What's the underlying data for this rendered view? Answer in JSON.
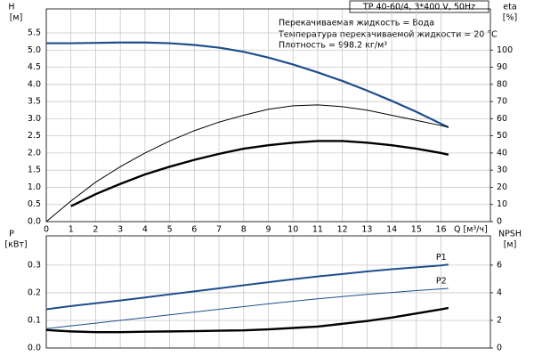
{
  "header": {
    "title": "TP 40-60/4, 3*400 V, 50Hz",
    "notes": [
      "Перекачиваемая жидкость = Вода",
      "Температура перекачиваемой жидкости = 20 °C",
      "Плотность = 998.2 кг/м³"
    ]
  },
  "chart_data": [
    {
      "type": "line",
      "ylabel": "H",
      "yunit": "[м]",
      "y2label": "eta",
      "y2unit": "[%]",
      "xlabel": "Q [м³/ч]",
      "x": [
        0,
        1,
        2,
        3,
        4,
        5,
        6,
        7,
        8,
        9,
        10,
        11,
        12,
        13,
        14,
        15,
        16,
        16.3
      ],
      "xlim": [
        0,
        18
      ],
      "xticks": [
        0,
        1,
        2,
        3,
        4,
        5,
        6,
        7,
        8,
        9,
        10,
        11,
        12,
        13,
        14,
        15,
        16
      ],
      "xtick_labels": true,
      "ylim": [
        0,
        6.2
      ],
      "yticks": [
        {
          "value": 0,
          "label": "0.0"
        },
        0.5,
        {
          "value": 1,
          "label": "1.0"
        },
        1.5,
        {
          "value": 2,
          "label": "2.0"
        },
        2.5,
        {
          "value": 3,
          "label": "3.0"
        },
        3.5,
        {
          "value": 4,
          "label": "4.0"
        },
        4.5,
        {
          "value": 5,
          "label": "5.0"
        },
        5.5
      ],
      "y2lim": [
        0,
        124
      ],
      "y2ticks": [
        0,
        10,
        20,
        30,
        40,
        50,
        60,
        70,
        80,
        90,
        100
      ],
      "grid": true,
      "series": [
        {
          "color": "#1f4e8c",
          "line_width": 2.2,
          "values": [
            5.2,
            5.2,
            5.21,
            5.22,
            5.22,
            5.2,
            5.15,
            5.07,
            4.95,
            4.78,
            4.58,
            4.35,
            4.1,
            3.82,
            3.52,
            3.2,
            2.85,
            2.75
          ]
        },
        {
          "color": "#000000",
          "line_width": 1,
          "axis": "y2",
          "values": [
            0,
            12,
            23,
            32,
            40,
            47,
            53,
            58,
            62,
            65.5,
            67.5,
            68,
            67,
            65,
            62,
            59,
            56,
            55
          ]
        },
        {
          "color": "#000000",
          "line_width": 2.4,
          "axis": "y2",
          "values": [
            null,
            9,
            16,
            22,
            27.5,
            32,
            36,
            39.5,
            42.5,
            44.5,
            46,
            47,
            47,
            46,
            44.5,
            42.5,
            40,
            39
          ]
        }
      ]
    },
    {
      "type": "line",
      "ylabel": "P",
      "yunit": "[кВт]",
      "y2label": "NPSH",
      "y2unit": "[м]",
      "x": [
        0,
        1,
        2,
        3,
        4,
        5,
        6,
        7,
        8,
        9,
        10,
        11,
        12,
        13,
        14,
        15,
        16,
        16.3
      ],
      "xlim": [
        0,
        18
      ],
      "xticks": [
        0,
        1,
        2,
        3,
        4,
        5,
        6,
        7,
        8,
        9,
        10,
        11,
        12,
        13,
        14,
        15,
        16
      ],
      "xtick_labels": false,
      "ylim": [
        0,
        0.406
      ],
      "yticks": [
        {
          "value": 0,
          "label": "0.0"
        },
        0.1,
        0.2,
        0.3
      ],
      "y2lim": [
        0,
        8.12
      ],
      "y2ticks": [
        0,
        2,
        4,
        6
      ],
      "grid": true,
      "series": [
        {
          "name": "P1",
          "color": "#1f4e8c",
          "line_width": 2,
          "values": [
            0.14,
            0.152,
            0.162,
            0.172,
            0.183,
            0.194,
            0.205,
            0.216,
            0.227,
            0.238,
            0.249,
            0.259,
            0.268,
            0.277,
            0.285,
            0.292,
            0.299,
            0.302
          ]
        },
        {
          "name": "P2",
          "color": "#1f4e8c",
          "line_width": 1,
          "values": [
            0.07,
            0.08,
            0.09,
            0.1,
            0.11,
            0.12,
            0.13,
            0.14,
            0.15,
            0.16,
            0.169,
            0.178,
            0.186,
            0.194,
            0.201,
            0.208,
            0.214,
            0.216
          ]
        },
        {
          "color": "#000000",
          "line_width": 2.4,
          "axis": "y2",
          "values": [
            1.3,
            1.2,
            1.15,
            1.15,
            1.18,
            1.2,
            1.22,
            1.25,
            1.28,
            1.35,
            1.45,
            1.55,
            1.75,
            1.95,
            2.2,
            2.5,
            2.8,
            2.9
          ]
        }
      ]
    }
  ]
}
